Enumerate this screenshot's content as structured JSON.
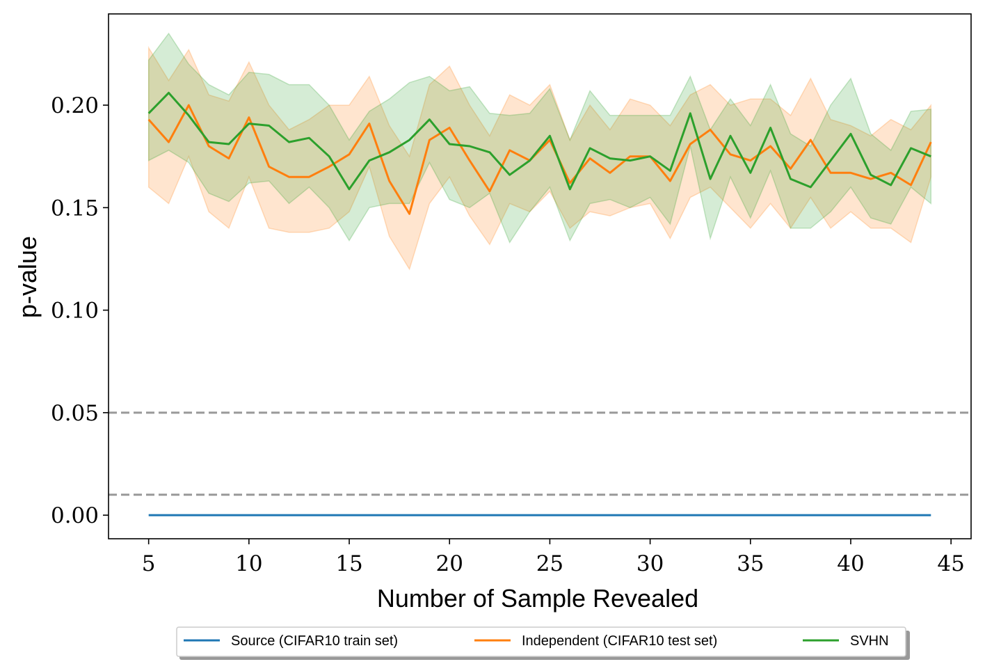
{
  "chart_data": {
    "type": "line",
    "title": "",
    "xlabel": "Number of Sample Revealed",
    "ylabel": "p-value",
    "xlim": [
      3,
      46
    ],
    "ylim": [
      -0.0115,
      0.2445
    ],
    "xticks": [
      5,
      10,
      15,
      20,
      25,
      30,
      35,
      40,
      45
    ],
    "xtick_labels": [
      "5",
      "10",
      "15",
      "20",
      "25",
      "30",
      "35",
      "40",
      "45"
    ],
    "yticks": [
      0.0,
      0.05,
      0.1,
      0.15,
      0.2
    ],
    "ytick_labels": [
      "0.00",
      "0.05",
      "0.10",
      "0.15",
      "0.20"
    ],
    "grid": false,
    "legend_position": "below-center",
    "reference_lines": [
      {
        "y": 0.05,
        "style": "dashed",
        "color": "#999999"
      },
      {
        "y": 0.01,
        "style": "dashed",
        "color": "#999999"
      }
    ],
    "x": [
      5,
      6,
      7,
      8,
      9,
      10,
      11,
      12,
      13,
      14,
      15,
      16,
      17,
      18,
      19,
      20,
      21,
      22,
      23,
      24,
      25,
      26,
      27,
      28,
      29,
      30,
      31,
      32,
      33,
      34,
      35,
      36,
      37,
      38,
      39,
      40,
      41,
      42,
      43,
      44
    ],
    "series": [
      {
        "name": "Source (CIFAR10 train set)",
        "color": "#1f77b4",
        "values": [
          0.0,
          0.0,
          0.0,
          0.0,
          0.0,
          0.0,
          0.0,
          0.0,
          0.0,
          0.0,
          0.0,
          0.0,
          0.0,
          0.0,
          0.0,
          0.0,
          0.0,
          0.0,
          0.0,
          0.0,
          0.0,
          0.0,
          0.0,
          0.0,
          0.0,
          0.0,
          0.0,
          0.0,
          0.0,
          0.0,
          0.0,
          0.0,
          0.0,
          0.0,
          0.0,
          0.0,
          0.0,
          0.0,
          0.0,
          0.0
        ]
      },
      {
        "name": "Independent (CIFAR10 test set)",
        "color": "#ff7f0e",
        "values": [
          0.193,
          0.182,
          0.2,
          0.18,
          0.174,
          0.194,
          0.17,
          0.165,
          0.165,
          0.17,
          0.176,
          0.191,
          0.163,
          0.147,
          0.183,
          0.189,
          0.173,
          0.158,
          0.178,
          0.173,
          0.183,
          0.162,
          0.174,
          0.167,
          0.175,
          0.175,
          0.163,
          0.181,
          0.188,
          0.176,
          0.173,
          0.18,
          0.169,
          0.183,
          0.167,
          0.167,
          0.164,
          0.167,
          0.161,
          0.182
        ],
        "lower": [
          0.16,
          0.152,
          0.175,
          0.148,
          0.14,
          0.165,
          0.14,
          0.138,
          0.138,
          0.14,
          0.148,
          0.17,
          0.136,
          0.12,
          0.152,
          0.165,
          0.146,
          0.132,
          0.152,
          0.148,
          0.158,
          0.14,
          0.148,
          0.146,
          0.15,
          0.152,
          0.135,
          0.155,
          0.16,
          0.15,
          0.14,
          0.152,
          0.14,
          0.155,
          0.14,
          0.148,
          0.14,
          0.14,
          0.133,
          0.165
        ],
        "upper": [
          0.228,
          0.212,
          0.227,
          0.205,
          0.202,
          0.221,
          0.2,
          0.188,
          0.193,
          0.2,
          0.2,
          0.214,
          0.19,
          0.175,
          0.21,
          0.219,
          0.2,
          0.185,
          0.205,
          0.2,
          0.21,
          0.183,
          0.2,
          0.188,
          0.203,
          0.2,
          0.19,
          0.205,
          0.21,
          0.2,
          0.203,
          0.203,
          0.195,
          0.213,
          0.193,
          0.19,
          0.185,
          0.193,
          0.188,
          0.2
        ]
      },
      {
        "name": "SVHN",
        "color": "#2ca02c",
        "values": [
          0.196,
          0.206,
          0.195,
          0.182,
          0.181,
          0.191,
          0.19,
          0.182,
          0.184,
          0.175,
          0.159,
          0.173,
          0.177,
          0.183,
          0.193,
          0.181,
          0.18,
          0.177,
          0.166,
          0.173,
          0.185,
          0.159,
          0.179,
          0.174,
          0.173,
          0.175,
          0.168,
          0.196,
          0.164,
          0.185,
          0.167,
          0.189,
          0.164,
          0.16,
          0.173,
          0.186,
          0.166,
          0.161,
          0.179,
          0.175
        ],
        "lower": [
          0.173,
          0.178,
          0.172,
          0.157,
          0.153,
          0.162,
          0.163,
          0.152,
          0.16,
          0.15,
          0.134,
          0.15,
          0.152,
          0.152,
          0.172,
          0.154,
          0.15,
          0.157,
          0.133,
          0.148,
          0.16,
          0.134,
          0.152,
          0.154,
          0.15,
          0.155,
          0.142,
          0.18,
          0.135,
          0.165,
          0.145,
          0.168,
          0.14,
          0.14,
          0.148,
          0.16,
          0.145,
          0.142,
          0.16,
          0.152
        ],
        "upper": [
          0.222,
          0.235,
          0.22,
          0.21,
          0.205,
          0.216,
          0.215,
          0.21,
          0.21,
          0.2,
          0.183,
          0.197,
          0.203,
          0.211,
          0.214,
          0.207,
          0.209,
          0.196,
          0.195,
          0.196,
          0.208,
          0.183,
          0.207,
          0.195,
          0.195,
          0.195,
          0.195,
          0.214,
          0.188,
          0.203,
          0.19,
          0.21,
          0.186,
          0.18,
          0.2,
          0.213,
          0.186,
          0.178,
          0.197,
          0.198
        ]
      }
    ]
  }
}
